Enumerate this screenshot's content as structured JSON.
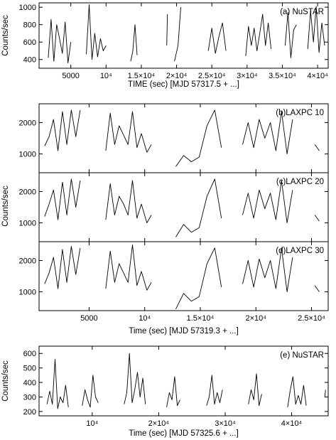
{
  "chart_data": [
    {
      "type": "line",
      "panel": "a",
      "label": "(a) NuSTAR",
      "xlabel": "TIME (sec) [MJD 57317.5 + ...]",
      "ylabel": "Counts/sec",
      "xlim": [
        500,
        41500
      ],
      "ylim": [
        300,
        1050
      ],
      "xticks": [
        5000,
        10000,
        15000,
        20000,
        25000,
        30000,
        35000,
        40000
      ],
      "xtick_labels": [
        "5000",
        "10⁴",
        "1.5×10⁴",
        "2×10⁴",
        "2.5×10⁴",
        "3×10⁴",
        "3.5×10⁴",
        "4×10⁴"
      ],
      "yticks": [
        400,
        600,
        800,
        1000
      ],
      "ytick_labels": [
        "400",
        "600",
        "800",
        "1000"
      ],
      "segments": [
        {
          "x": [
            1800,
            2200,
            2600,
            3000,
            3400,
            3800,
            4200,
            4600,
            5000
          ],
          "y": [
            420,
            860,
            380,
            800,
            640,
            470,
            830,
            360,
            600
          ]
        },
        {
          "x": [
            7200,
            7600,
            8000,
            8400,
            8800,
            9200,
            9600,
            10000
          ],
          "y": [
            460,
            1030,
            400,
            700,
            430,
            640,
            500,
            560
          ]
        },
        {
          "x": [
            13500,
            13800,
            14100,
            14400
          ],
          "y": [
            380,
            500,
            800,
            450
          ]
        },
        {
          "x": [
            18600,
            18700
          ],
          "y": [
            560,
            920
          ]
        },
        {
          "x": [
            19700,
            20200,
            20600
          ],
          "y": [
            380,
            560,
            1000
          ]
        },
        {
          "x": [
            24500,
            25000,
            25500,
            26000,
            26500,
            27000
          ],
          "y": [
            500,
            760,
            470,
            660,
            820,
            500
          ]
        },
        {
          "x": [
            29800,
            30200,
            30600,
            31000,
            31400,
            31800,
            32200,
            32600,
            33000,
            33400
          ],
          "y": [
            440,
            780,
            560,
            760,
            500,
            700,
            920,
            560,
            820,
            520
          ]
        },
        {
          "x": [
            35400,
            35800,
            36200,
            36600,
            37000
          ],
          "y": [
            560,
            940,
            420,
            740,
            800
          ]
        },
        {
          "x": [
            38600,
            39000,
            39400,
            39800,
            40200,
            40600,
            41000
          ],
          "y": [
            520,
            960,
            600,
            1010,
            480,
            820,
            560
          ]
        }
      ]
    },
    {
      "type": "line",
      "panel": "b",
      "label": "(b)LAXPC 10",
      "xlabel": "",
      "ylabel": "",
      "xlim": [
        500,
        26500
      ],
      "ylim": [
        400,
        2600
      ],
      "xticks": [
        5000,
        10000,
        15000,
        20000,
        25000
      ],
      "yticks": [
        1000,
        2000
      ],
      "ytick_labels": [
        "1000",
        "2000"
      ],
      "segments": [
        {
          "x": [
            1000,
            1400,
            1800,
            2200,
            2600,
            3000,
            3400,
            3800,
            4200
          ],
          "y": [
            1250,
            1550,
            2100,
            1100,
            2350,
            1300,
            2400,
            1550,
            2400
          ]
        },
        {
          "x": [
            6500,
            6900,
            7300,
            7700,
            8100,
            8500,
            8900,
            9300,
            9700,
            10200,
            10600
          ],
          "y": [
            1100,
            2300,
            1300,
            1900,
            1600,
            1300,
            2350,
            1200,
            1650,
            1050,
            1300
          ]
        },
        {
          "x": [
            12800,
            13500,
            14200,
            14900,
            15600,
            16300,
            16900
          ],
          "y": [
            600,
            950,
            750,
            900,
            1900,
            2400,
            1200
          ]
        },
        {
          "x": [
            18800,
            19300,
            19800,
            20300,
            20800,
            21300,
            21800,
            22300,
            22800,
            23300
          ],
          "y": [
            1300,
            2000,
            1200,
            2100,
            1500,
            2000,
            1100,
            2350,
            1000,
            2100
          ]
        },
        {
          "x": [
            25300,
            25700
          ],
          "y": [
            1300,
            1100
          ]
        }
      ]
    },
    {
      "type": "line",
      "panel": "c",
      "label": "(c)LAXPC 20",
      "xlabel": "",
      "ylabel": "Counts/sec",
      "xlim": [
        500,
        26500
      ],
      "ylim": [
        400,
        2600
      ],
      "xticks": [
        5000,
        10000,
        15000,
        20000,
        25000
      ],
      "yticks": [
        1000,
        2000
      ],
      "ytick_labels": [
        "1000",
        "2000"
      ],
      "segments": [
        {
          "x": [
            1000,
            1400,
            1800,
            2200,
            2600,
            3000,
            3400,
            3800,
            4200
          ],
          "y": [
            1200,
            1600,
            2050,
            1100,
            2300,
            1250,
            2400,
            1500,
            2350
          ]
        },
        {
          "x": [
            6500,
            6900,
            7300,
            7700,
            8100,
            8500,
            8900,
            9300,
            9700,
            10200,
            10600
          ],
          "y": [
            1100,
            2250,
            1250,
            1850,
            1600,
            1250,
            2350,
            1150,
            1600,
            1000,
            1250
          ]
        },
        {
          "x": [
            12800,
            13500,
            14200,
            14900,
            15600,
            16300,
            16900
          ],
          "y": [
            550,
            950,
            700,
            850,
            1850,
            2400,
            1150
          ]
        },
        {
          "x": [
            18800,
            19300,
            19800,
            20300,
            20800,
            21300,
            21800,
            22300,
            22800,
            23300
          ],
          "y": [
            1250,
            1950,
            1150,
            2050,
            1450,
            1950,
            1100,
            2350,
            1000,
            2050
          ]
        },
        {
          "x": [
            25300,
            25700
          ],
          "y": [
            1250,
            1050
          ]
        }
      ]
    },
    {
      "type": "line",
      "panel": "d",
      "label": "(d)LAXPC 30",
      "xlabel": "Time (sec) [MJD 57319.3 + ...]",
      "ylabel": "",
      "xlim": [
        500,
        26500
      ],
      "ylim": [
        400,
        2600
      ],
      "xticks": [
        5000,
        10000,
        15000,
        20000,
        25000
      ],
      "xtick_labels": [
        "5000",
        "10⁴",
        "1.5×10⁴",
        "2×10⁴",
        "2.5×10⁴"
      ],
      "yticks": [
        1000,
        2000
      ],
      "ytick_labels": [
        "1000",
        "2000"
      ],
      "segments": [
        {
          "x": [
            1000,
            1400,
            1800,
            2200,
            2600,
            3000,
            3400,
            3800,
            4200
          ],
          "y": [
            1250,
            1600,
            2100,
            1100,
            2350,
            1300,
            2450,
            1550,
            2400
          ]
        },
        {
          "x": [
            6500,
            6900,
            7300,
            7700,
            8100,
            8500,
            8900,
            9300,
            9700,
            10200,
            10600
          ],
          "y": [
            1100,
            2300,
            1300,
            1900,
            1600,
            1300,
            2500,
            1200,
            1650,
            1050,
            1300
          ]
        },
        {
          "x": [
            12800,
            13500,
            14200,
            14900,
            15600,
            16300,
            16900
          ],
          "y": [
            450,
            950,
            700,
            850,
            1900,
            2400,
            1150
          ]
        },
        {
          "x": [
            18800,
            19300,
            19800,
            20300,
            20800,
            21300,
            21800,
            22300,
            22800,
            23300
          ],
          "y": [
            1250,
            2000,
            1150,
            2050,
            1450,
            2000,
            1100,
            2400,
            1000,
            2100
          ]
        },
        {
          "x": [
            25300,
            25700
          ],
          "y": [
            1200,
            1000
          ]
        }
      ]
    },
    {
      "type": "line",
      "panel": "e",
      "label": "(e) NuSTAR",
      "xlabel": "Time (sec) [MJD 57325.6 + ...]",
      "ylabel": "Counts/sec",
      "xlim": [
        2000,
        45500
      ],
      "ylim": [
        170,
        650
      ],
      "xticks": [
        10000,
        20000,
        30000,
        40000
      ],
      "xtick_labels": [
        "10⁴",
        "2×10⁴",
        "3×10⁴",
        "4×10⁴"
      ],
      "yticks": [
        200,
        300,
        400,
        500,
        600
      ],
      "ytick_labels": [
        "200",
        "300",
        "400",
        "500",
        "600"
      ],
      "segments": [
        {
          "x": [
            3200,
            3600,
            4000,
            4400,
            4800,
            5200,
            5600,
            6000,
            6400
          ],
          "y": [
            250,
            340,
            250,
            560,
            220,
            300,
            260,
            380,
            230
          ]
        },
        {
          "x": [
            8500,
            8900,
            9300,
            9700,
            10100,
            10500,
            10900
          ],
          "y": [
            240,
            350,
            280,
            230,
            450,
            300,
            260
          ]
        },
        {
          "x": [
            14800,
            15200,
            15600,
            16000,
            16400,
            16800,
            17200,
            17600,
            18000
          ],
          "y": [
            250,
            330,
            600,
            260,
            350,
            470,
            300,
            430,
            250
          ]
        },
        {
          "x": [
            21200,
            21600,
            22000,
            22400,
            22800,
            23200
          ],
          "y": [
            230,
            330,
            280,
            440,
            240,
            280
          ]
        },
        {
          "x": [
            27200,
            27600,
            28000,
            28400,
            28800,
            29200,
            29600
          ],
          "y": [
            240,
            300,
            450,
            250,
            330,
            260,
            350
          ]
        },
        {
          "x": [
            33500,
            33900,
            34300,
            34700,
            35100,
            35500
          ],
          "y": [
            250,
            350,
            280,
            460,
            240,
            320
          ]
        },
        {
          "x": [
            39400,
            39800,
            40200,
            40600,
            41000,
            41400,
            41800,
            42200
          ],
          "y": [
            230,
            350,
            440,
            250,
            310,
            250,
            380,
            240
          ]
        },
        {
          "x": [
            45000,
            45100
          ],
          "y": [
            300,
            350
          ]
        }
      ]
    }
  ]
}
